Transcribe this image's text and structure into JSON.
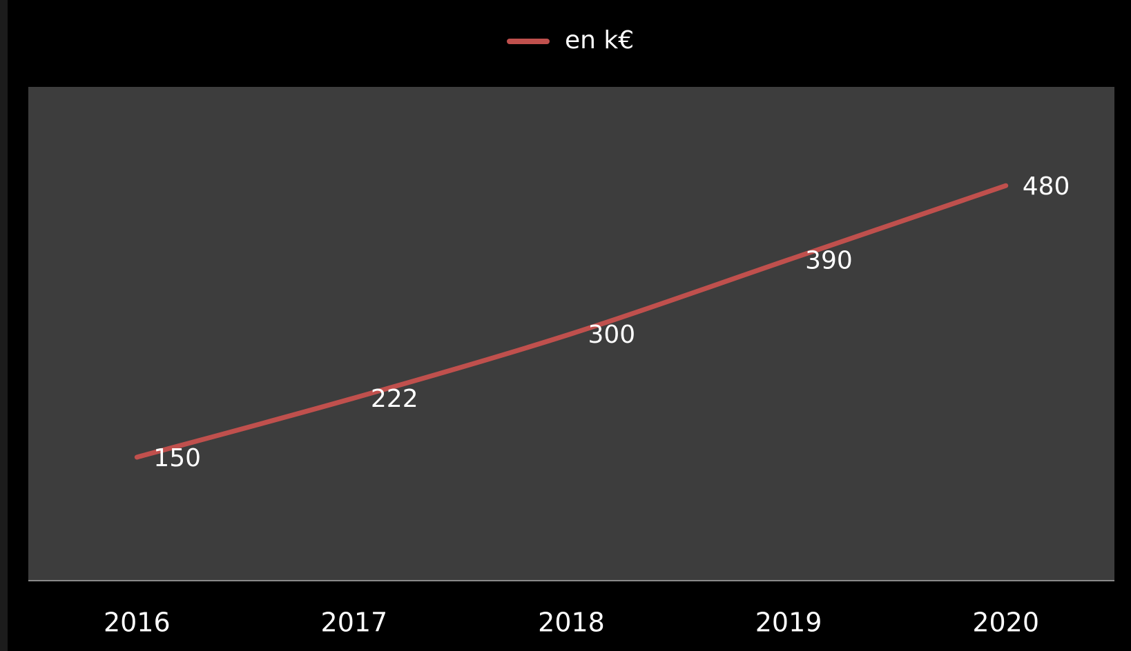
{
  "chart_data": {
    "type": "line",
    "categories": [
      "2016",
      "2017",
      "2018",
      "2019",
      "2020"
    ],
    "series": [
      {
        "name": "en k€",
        "color": "#c0504d",
        "values": [
          150,
          222,
          300,
          390,
          480
        ]
      }
    ],
    "ylim": [
      0,
      600
    ]
  }
}
